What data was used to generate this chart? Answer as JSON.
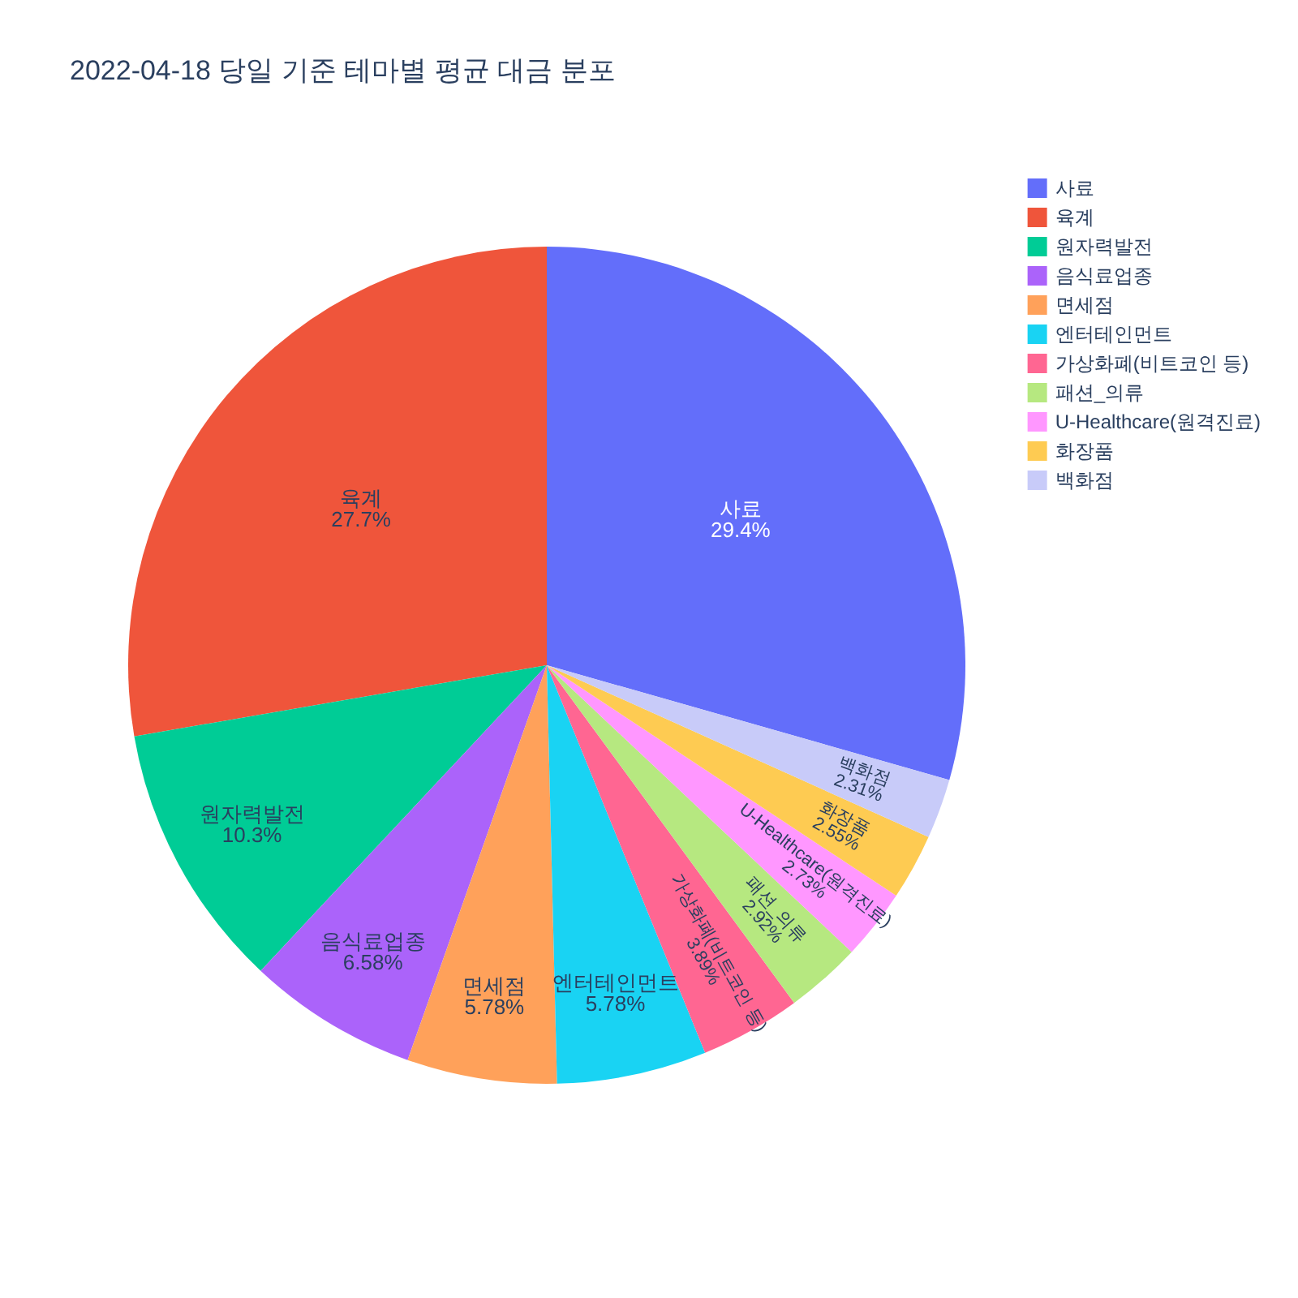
{
  "chart_data": {
    "type": "pie",
    "title": "2022-04-18 당일 기준 테마별 평균 대금 분포",
    "categories": [
      "사료",
      "육계",
      "원자력발전",
      "음식료업종",
      "면세점",
      "엔터테인먼트",
      "가상화폐(비트코인 등)",
      "패션_의류",
      "U-Healthcare(원격진료)",
      "화장품",
      "백화점"
    ],
    "values": [
      29.4,
      27.7,
      10.3,
      6.58,
      5.78,
      5.78,
      3.89,
      2.92,
      2.73,
      2.55,
      2.31
    ],
    "value_labels": [
      "29.4%",
      "27.7%",
      "10.3%",
      "6.58%",
      "5.78%",
      "5.78%",
      "3.89%",
      "2.92%",
      "2.73%",
      "2.55%",
      "2.31%"
    ],
    "colors": [
      "#636efa",
      "#ef553b",
      "#00cc96",
      "#ab63fa",
      "#ffa15a",
      "#19d3f3",
      "#ff6692",
      "#b6e880",
      "#ff97ff",
      "#fecb52",
      "#c8cbf9"
    ],
    "legend": "top right"
  }
}
